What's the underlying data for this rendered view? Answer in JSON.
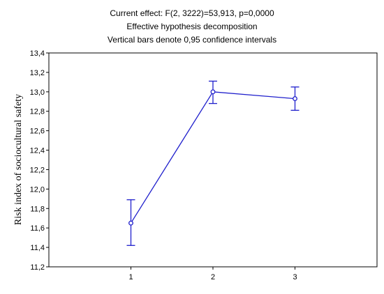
{
  "chart_data": {
    "type": "line",
    "title_lines": [
      "Current effect: F(2, 3222)=53,913, p=0,0000",
      "Effective hypothesis decomposition",
      "Vertical bars denote 0,95 confidence intervals"
    ],
    "xlabel": "",
    "ylabel": "Risk index of sociocultural safety",
    "categories": [
      "1",
      "2",
      "3"
    ],
    "x_range": [
      0,
      4
    ],
    "ylim": [
      11.2,
      13.4
    ],
    "y_ticks": [
      "11,2",
      "11,4",
      "11,6",
      "11,8",
      "12,0",
      "12,2",
      "12,4",
      "12,6",
      "12,8",
      "13,0",
      "13,2",
      "13,4"
    ],
    "series": [
      {
        "values": [
          11.65,
          13.0,
          12.93
        ],
        "ci_lower": [
          11.42,
          12.88,
          12.81
        ],
        "ci_upper": [
          11.89,
          13.11,
          13.05
        ]
      }
    ],
    "grid": false,
    "line_color": "#1f1fcc"
  }
}
